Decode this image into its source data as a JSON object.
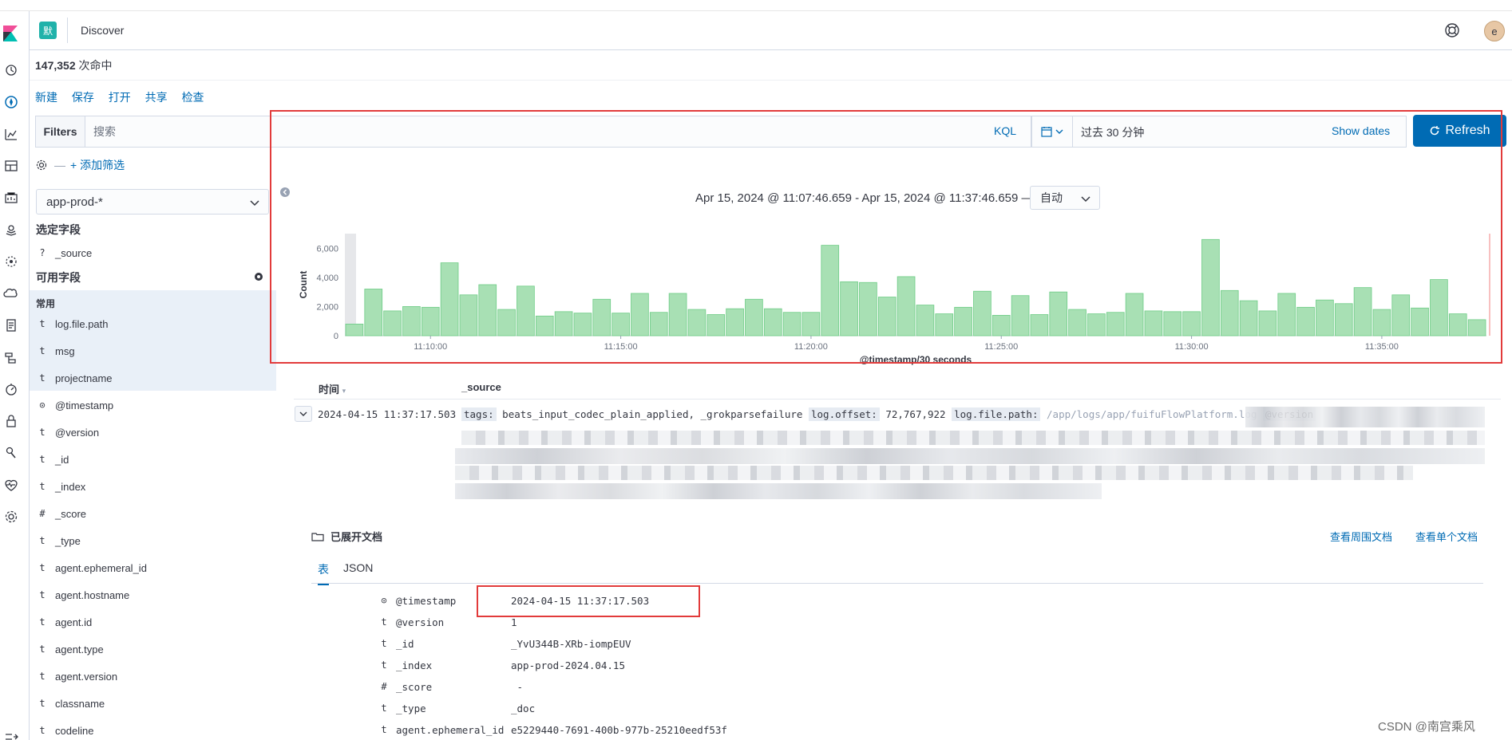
{
  "header": {
    "space_badge": "默",
    "title": "Discover",
    "avatar_letter": "e"
  },
  "hits": {
    "count": "147,352",
    "suffix": "次命中"
  },
  "menu": [
    "新建",
    "保存",
    "打开",
    "共享",
    "检查"
  ],
  "query_bar": {
    "filters_label": "Filters",
    "search_placeholder": "搜索",
    "language": "KQL"
  },
  "time_picker": {
    "value": "过去 30 分钟",
    "show_dates": "Show dates"
  },
  "refresh_label": "Refresh",
  "filter_bar": {
    "dash": "—",
    "add_filter": "+ 添加筛选"
  },
  "sidebar": {
    "index_pattern": "app-prod-*",
    "selected_title": "选定字段",
    "selected_fields": [
      {
        "type": "?",
        "name": "_source"
      }
    ],
    "available_title": "可用字段",
    "common_label": "常用",
    "common_fields": [
      {
        "type": "t",
        "name": "log.file.path"
      },
      {
        "type": "t",
        "name": "msg"
      },
      {
        "type": "t",
        "name": "projectname"
      }
    ],
    "available_fields": [
      {
        "type": "⊙",
        "name": "@timestamp"
      },
      {
        "type": "t",
        "name": "@version"
      },
      {
        "type": "t",
        "name": "_id"
      },
      {
        "type": "t",
        "name": "_index"
      },
      {
        "type": "#",
        "name": "_score"
      },
      {
        "type": "t",
        "name": "_type"
      },
      {
        "type": "t",
        "name": "agent.ephemeral_id"
      },
      {
        "type": "t",
        "name": "agent.hostname"
      },
      {
        "type": "t",
        "name": "agent.id"
      },
      {
        "type": "t",
        "name": "agent.type"
      },
      {
        "type": "t",
        "name": "agent.version"
      },
      {
        "type": "t",
        "name": "classname"
      },
      {
        "type": "t",
        "name": "codeline"
      }
    ]
  },
  "chart": {
    "range_text": "Apr 15, 2024 @ 11:07:46.659 - Apr 15, 2024 @ 11:37:46.659 —",
    "interval": "自动"
  },
  "chart_data": {
    "type": "bar",
    "xlabel": "@timestamp/30 seconds",
    "ylabel": "Count",
    "ylim": [
      0,
      7000
    ],
    "yticks": [
      "0",
      "2,000",
      "4,000",
      "6,000"
    ],
    "xticks": [
      "11:10:00",
      "11:15:00",
      "11:20:00",
      "11:25:00",
      "11:30:00",
      "11:35:00"
    ],
    "values": [
      800,
      3200,
      1700,
      2000,
      1950,
      5000,
      2800,
      3500,
      1800,
      3400,
      1350,
      1650,
      1550,
      2500,
      1550,
      2900,
      1600,
      2900,
      1800,
      1450,
      1850,
      2500,
      1850,
      1600,
      1600,
      6200,
      3700,
      3650,
      2650,
      4050,
      2100,
      1500,
      1950,
      3050,
      1400,
      2750,
      1450,
      3000,
      1800,
      1500,
      1600,
      2900,
      1700,
      1650,
      1650,
      6600,
      3100,
      2400,
      1700,
      2900,
      1950,
      2450,
      2200,
      3300,
      1800,
      2800,
      1900,
      3850,
      1500,
      1100
    ]
  },
  "table": {
    "time_header": "时间",
    "source_header": "_source",
    "row_time": "2024-04-15 11:37:17.503",
    "source_preview": [
      {
        "key": "tags:",
        "value": "beats_input_codec_plain_applied, _grokparsefailure"
      },
      {
        "key": "log.offset:",
        "value": "72,767,922"
      },
      {
        "key": "log.file.path:",
        "value": "/app/logs/app/fuifuFlowPlatform.log"
      },
      {
        "key": "@version",
        "value": ""
      }
    ]
  },
  "expanded": {
    "title": "已展开文档",
    "view_surrounding": "查看周围文档",
    "view_single": "查看单个文档",
    "tab_table": "表",
    "tab_json": "JSON",
    "rows": [
      {
        "type": "⊙",
        "key": "@timestamp",
        "value": "2024-04-15 11:37:17.503"
      },
      {
        "type": "t",
        "key": "@version",
        "value": "1"
      },
      {
        "type": "t",
        "key": "_id",
        "value": "_YvU344B-XRb-iompEUV"
      },
      {
        "type": "t",
        "key": "_index",
        "value": "app-prod-2024.04.15"
      },
      {
        "type": "#",
        "key": "_score",
        "value": " -"
      },
      {
        "type": "t",
        "key": "_type",
        "value": "_doc"
      },
      {
        "type": "t",
        "key": "agent.ephemeral_id",
        "value": "e5229440-7691-400b-977b-25210eedf53f"
      }
    ]
  },
  "watermark": "CSDN @南宫乘风"
}
